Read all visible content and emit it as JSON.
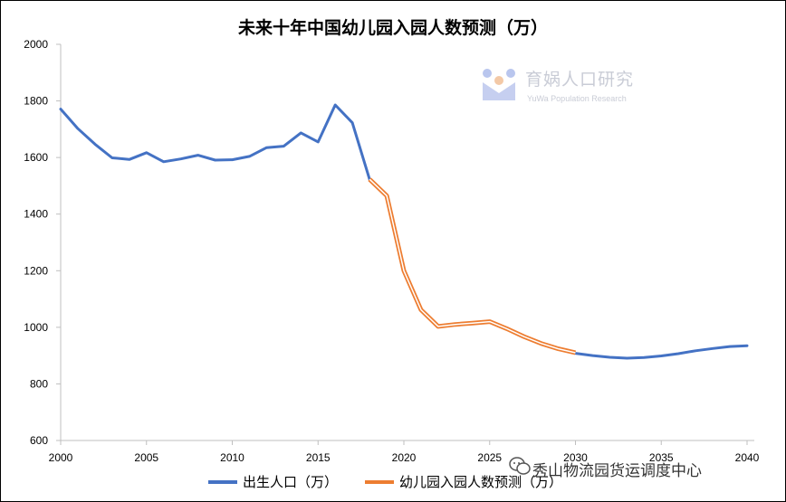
{
  "title": "未来十年中国幼儿园入园人数预测（万）",
  "watermark": {
    "brand": "育娲人口研究",
    "sub": "YuWa Population Research"
  },
  "source_label": "秀山物流园货运调度中心",
  "colors": {
    "births": "#4472C4",
    "forecast": "#ED7D31"
  },
  "chart_data": {
    "type": "line",
    "title": "未来十年中国幼儿园入园人数预测（万）",
    "xlim": [
      2000,
      2040
    ],
    "ylim": [
      600,
      2000
    ],
    "x_ticks": [
      2000,
      2005,
      2010,
      2015,
      2020,
      2025,
      2030,
      2035,
      2040
    ],
    "y_ticks": [
      600,
      800,
      1000,
      1200,
      1400,
      1600,
      1800,
      2000
    ],
    "grid": false,
    "legend_position": "bottom",
    "series": [
      {
        "name": "出生人口（万）",
        "color": "#4472C4",
        "points": [
          [
            2000,
            1771
          ],
          [
            2001,
            1702
          ],
          [
            2002,
            1647
          ],
          [
            2003,
            1599
          ],
          [
            2004,
            1593
          ],
          [
            2005,
            1617
          ],
          [
            2006,
            1585
          ],
          [
            2007,
            1595
          ],
          [
            2008,
            1608
          ],
          [
            2009,
            1591
          ],
          [
            2010,
            1592
          ],
          [
            2011,
            1604
          ],
          [
            2012,
            1635
          ],
          [
            2013,
            1640
          ],
          [
            2014,
            1687
          ],
          [
            2015,
            1655
          ],
          [
            2016,
            1786
          ],
          [
            2017,
            1723
          ],
          [
            2018,
            1523
          ],
          [
            2030,
            908
          ],
          [
            2031,
            900
          ],
          [
            2032,
            894
          ],
          [
            2033,
            891
          ],
          [
            2034,
            893
          ],
          [
            2035,
            899
          ],
          [
            2036,
            907
          ],
          [
            2037,
            917
          ],
          [
            2038,
            925
          ],
          [
            2039,
            932
          ],
          [
            2040,
            935
          ]
        ]
      },
      {
        "name": "幼儿园入园人数预测（万）",
        "color": "#ED7D31",
        "points": [
          [
            2018,
            1523
          ],
          [
            2019,
            1465
          ],
          [
            2020,
            1200
          ],
          [
            2021,
            1062
          ],
          [
            2022,
            1003
          ],
          [
            2023,
            1010
          ],
          [
            2024,
            1015
          ],
          [
            2025,
            1020
          ],
          [
            2026,
            995
          ],
          [
            2027,
            967
          ],
          [
            2028,
            943
          ],
          [
            2029,
            924
          ],
          [
            2030,
            910
          ]
        ]
      }
    ]
  }
}
